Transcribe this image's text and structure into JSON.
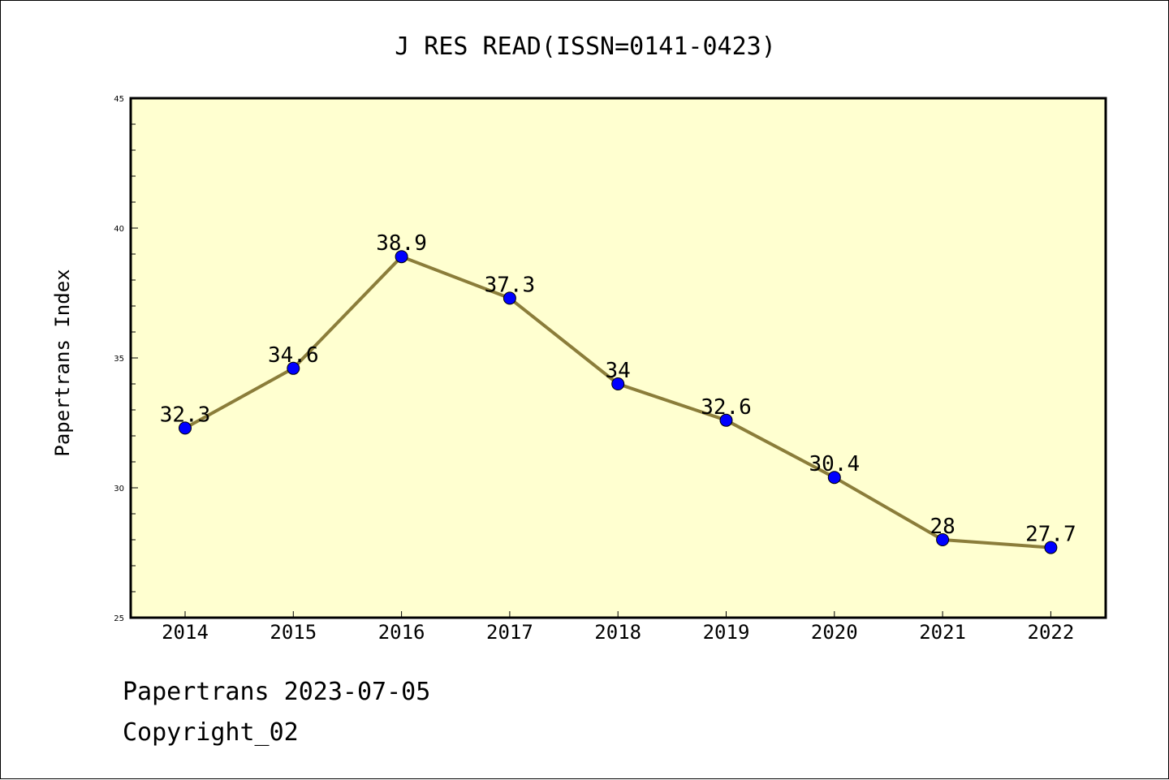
{
  "chart_data": {
    "type": "line",
    "title": "J RES READ(ISSN=0141-0423)",
    "xlabel": "",
    "ylabel": "Papertrans Index",
    "categories": [
      "2014",
      "2015",
      "2016",
      "2017",
      "2018",
      "2019",
      "2020",
      "2021",
      "2022"
    ],
    "series": [
      {
        "values": [
          32.3,
          34.6,
          38.9,
          37.3,
          34,
          32.6,
          30.4,
          28,
          27.7
        ],
        "labels": [
          "32.3",
          "34.6",
          "38.9",
          "37.3",
          "34",
          "32.6",
          "30.4",
          "28",
          "27.7"
        ]
      }
    ],
    "ylim": [
      25,
      45
    ],
    "yticks": [
      "25",
      "30",
      "35",
      "40",
      "45"
    ],
    "grid": false,
    "legend": "none",
    "colors": {
      "plot_background": "#FFFFD0",
      "line": "#8B7D3A",
      "marker": "#0000FF"
    }
  },
  "footer": {
    "line1": "Papertrans 2023-07-05",
    "line2": "Copyright_02"
  }
}
